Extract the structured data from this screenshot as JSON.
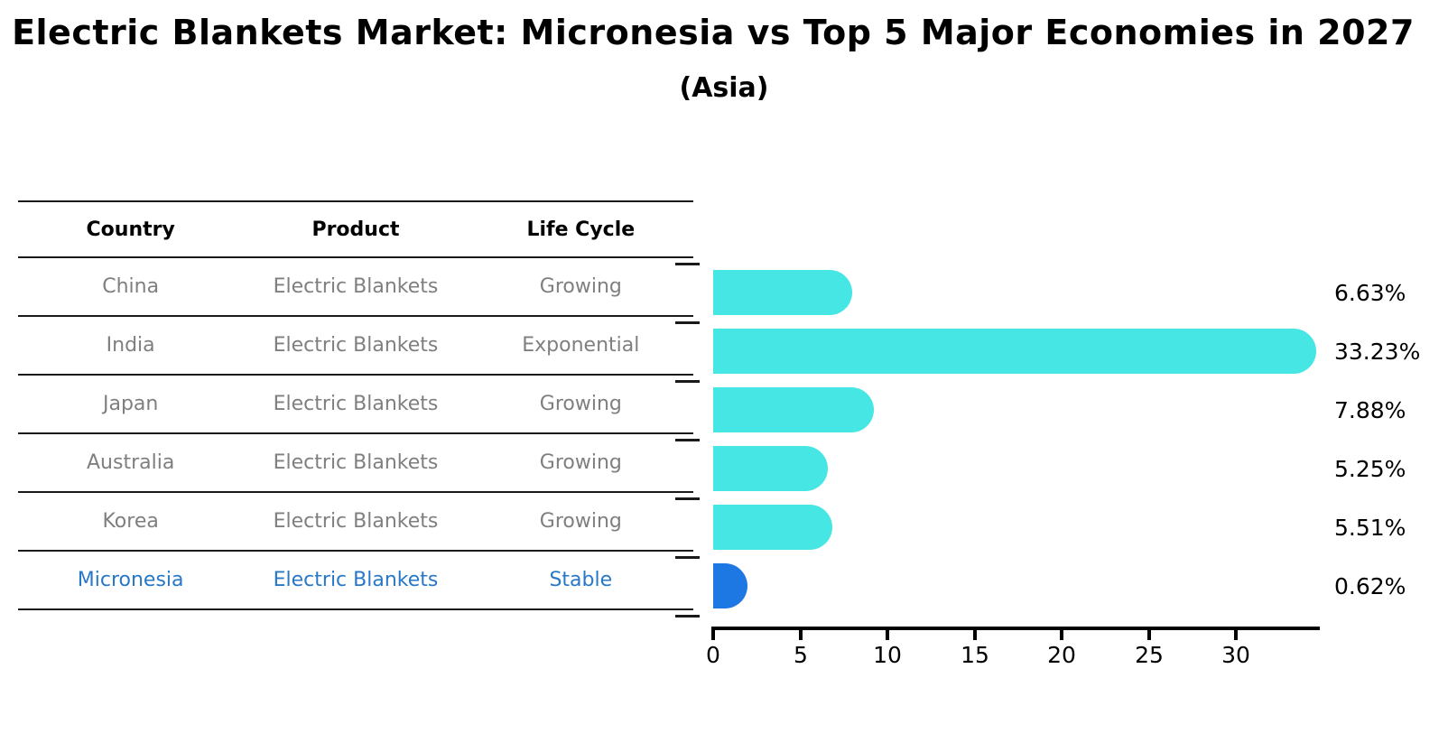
{
  "title": "Electric Blankets Market: Micronesia vs Top 5 Major Economies in 2027",
  "subtitle": "(Asia)",
  "table": {
    "headers": [
      "Country",
      "Product",
      "Life Cycle"
    ],
    "rows": [
      {
        "country": "China",
        "product": "Electric Blankets",
        "life_cycle": "Growing",
        "highlight": false
      },
      {
        "country": "India",
        "product": "Electric Blankets",
        "life_cycle": "Exponential",
        "highlight": false
      },
      {
        "country": "Japan",
        "product": "Electric Blankets",
        "life_cycle": "Growing",
        "highlight": false
      },
      {
        "country": "Australia",
        "product": "Electric Blankets",
        "life_cycle": "Growing",
        "highlight": false
      },
      {
        "country": "Korea",
        "product": "Electric Blankets",
        "life_cycle": "Growing",
        "highlight": false
      },
      {
        "country": "Micronesia",
        "product": "Electric Blankets",
        "life_cycle": "Stable",
        "highlight": true
      }
    ]
  },
  "chart_data": {
    "type": "bar",
    "orientation": "horizontal",
    "title": "Electric Blankets Market: Micronesia vs Top 5 Major Economies in 2027",
    "subtitle": "(Asia)",
    "categories": [
      "China",
      "India",
      "Japan",
      "Australia",
      "Korea",
      "Micronesia"
    ],
    "values": [
      6.63,
      33.23,
      7.88,
      5.25,
      5.51,
      0.62
    ],
    "value_labels": [
      "6.63%",
      "33.23%",
      "7.88%",
      "5.25%",
      "5.51%",
      "0.62%"
    ],
    "unit": "%",
    "xlim": [
      0,
      34.7
    ],
    "xticks": [
      0,
      5,
      10,
      15,
      20,
      25,
      30
    ],
    "grid": false,
    "legend": null,
    "bar_color": "#45e6e3",
    "highlight_color": "#1e78e4",
    "highlight_index": 5
  },
  "colors": {
    "table_text": "#7f7f7f",
    "table_highlight_text": "#2878c8",
    "axis": "#000000"
  }
}
